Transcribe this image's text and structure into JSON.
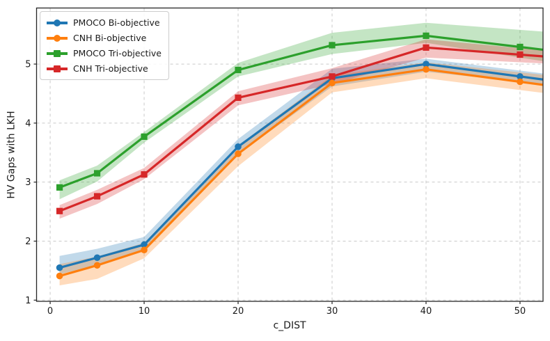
{
  "figure": {
    "background": "#ffffff",
    "text_color": "#1a1a1a",
    "grid_color": "#c9c9c9",
    "spine_color": "#262626"
  },
  "chart_data": {
    "type": "line",
    "title": "",
    "xlabel": "c_DIST",
    "ylabel": "HV Gaps with LKH",
    "x": [
      1,
      5,
      10,
      20,
      30,
      40,
      50
    ],
    "xticks": [
      0,
      10,
      20,
      30,
      40,
      50
    ],
    "yticks": [
      1,
      2,
      3,
      4,
      5
    ],
    "xlim": [
      -1.45,
      52.45
    ],
    "ylim": [
      0.98,
      5.95
    ],
    "grid": true,
    "grid_style": "dashed",
    "legend_position": "upper-left",
    "lines_extend_to_right_edge": true,
    "band_opacity": 0.28,
    "series": [
      {
        "name": "PMOCO Bi-objective",
        "color": "#1f77b4",
        "marker": "circle",
        "values": [
          1.55,
          1.72,
          1.94,
          3.6,
          4.76,
          5.0,
          4.79
        ],
        "band_upper": [
          1.75,
          1.87,
          2.07,
          3.73,
          4.92,
          5.09,
          4.89
        ],
        "band_lower": [
          1.44,
          1.59,
          1.83,
          3.47,
          4.62,
          4.87,
          4.7
        ]
      },
      {
        "name": "CNH Bi-objective",
        "color": "#ff7f0e",
        "marker": "circle",
        "values": [
          1.41,
          1.59,
          1.85,
          3.48,
          4.68,
          4.91,
          4.7
        ],
        "band_upper": [
          1.61,
          1.74,
          1.97,
          3.62,
          4.81,
          5.03,
          4.86
        ],
        "band_lower": [
          1.25,
          1.36,
          1.71,
          3.27,
          4.52,
          4.76,
          4.56
        ]
      },
      {
        "name": "PMOCO Tri-objective",
        "color": "#2ca02c",
        "marker": "square",
        "values": [
          2.91,
          3.15,
          3.77,
          4.9,
          5.32,
          5.48,
          5.29
        ],
        "band_upper": [
          3.03,
          3.28,
          3.85,
          5.02,
          5.53,
          5.7,
          5.58
        ],
        "band_lower": [
          2.71,
          3.01,
          3.67,
          4.79,
          5.17,
          5.36,
          5.11
        ]
      },
      {
        "name": "CNH Tri-objective",
        "color": "#d62728",
        "marker": "square",
        "values": [
          2.51,
          2.76,
          3.13,
          4.43,
          4.79,
          5.28,
          5.16
        ],
        "band_upper": [
          2.61,
          2.87,
          3.24,
          4.54,
          4.93,
          5.42,
          5.27
        ],
        "band_lower": [
          2.38,
          2.63,
          3.05,
          4.3,
          4.66,
          5.11,
          5.03
        ]
      }
    ]
  }
}
